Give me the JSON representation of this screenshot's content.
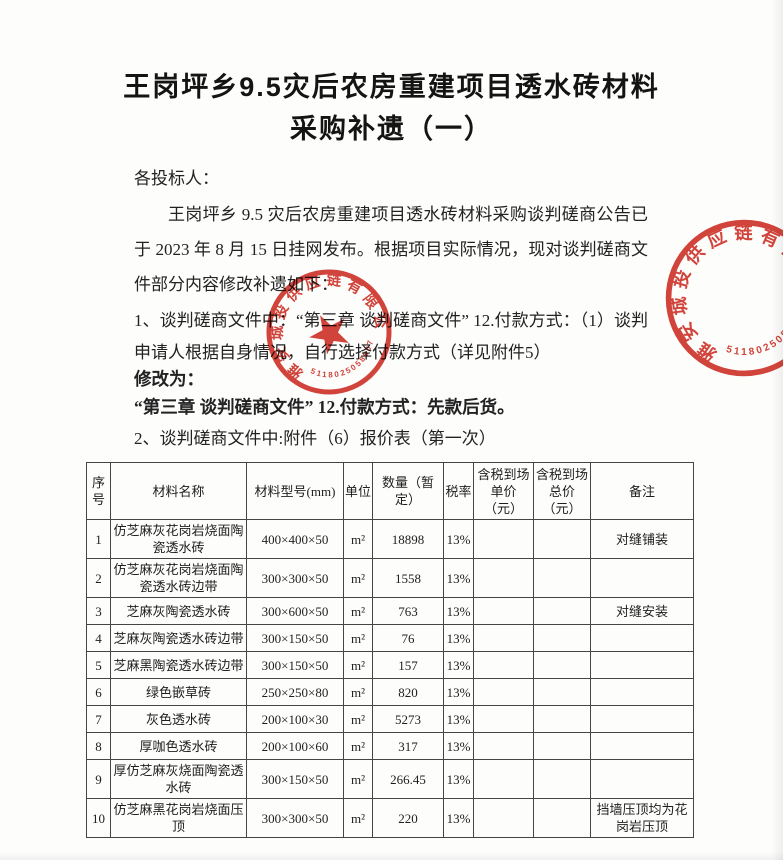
{
  "title": {
    "line1": "王岗坪乡9.5灾后农房重建项目透水砖材料",
    "line2": "采购补遗（一）"
  },
  "body": {
    "salutation": "各投标人：",
    "intro": "王岗坪乡 9.5 灾后农房重建项目透水砖材料采购谈判磋商公告已于 2023 年 8 月 15 日挂网发布。根据项目实际情况，现对谈判磋商文件部分内容修改补遗如下：",
    "clause1": "1、谈判磋商文件中：“第三章 谈判磋商文件” 12.付款方式：（1）谈判申请人根据自身情况，自行选择付款方式（详见附件5）",
    "modify_label": "修改为：",
    "modified_clause": "“第三章 谈判磋商文件”  12.付款方式：先款后货。",
    "clause2": "2、谈判磋商文件中:附件（6）报价表（第一次）"
  },
  "table": {
    "headers": [
      "序号",
      "材料名称",
      "材料型号(mm)",
      "单位",
      "数量（暂定）",
      "税率",
      "含税到场单价（元）",
      "含税到场总价（元）",
      "备注"
    ],
    "column_keys": [
      "no",
      "name",
      "model",
      "unit",
      "qty",
      "tax",
      "unit_price",
      "total_price",
      "note"
    ],
    "rows": [
      {
        "no": "1",
        "name": "仿芝麻灰花岗岩烧面陶瓷透水砖",
        "model": "400×400×50",
        "unit": "m²",
        "qty": "18898",
        "tax": "13%",
        "unit_price": "",
        "total_price": "",
        "note": "对缝铺装"
      },
      {
        "no": "2",
        "name": "仿芝麻灰花岗岩烧面陶瓷透水砖边带",
        "model": "300×300×50",
        "unit": "m²",
        "qty": "1558",
        "tax": "13%",
        "unit_price": "",
        "total_price": "",
        "note": ""
      },
      {
        "no": "3",
        "name": "芝麻灰陶瓷透水砖",
        "model": "300×600×50",
        "unit": "m²",
        "qty": "763",
        "tax": "13%",
        "unit_price": "",
        "total_price": "",
        "note": "对缝安装"
      },
      {
        "no": "4",
        "name": "芝麻灰陶瓷透水砖边带",
        "model": "300×150×50",
        "unit": "m²",
        "qty": "76",
        "tax": "13%",
        "unit_price": "",
        "total_price": "",
        "note": ""
      },
      {
        "no": "5",
        "name": "芝麻黑陶瓷透水砖边带",
        "model": "300×150×50",
        "unit": "m²",
        "qty": "157",
        "tax": "13%",
        "unit_price": "",
        "total_price": "",
        "note": ""
      },
      {
        "no": "6",
        "name": "绿色嵌草砖",
        "model": "250×250×80",
        "unit": "m²",
        "qty": "820",
        "tax": "13%",
        "unit_price": "",
        "total_price": "",
        "note": ""
      },
      {
        "no": "7",
        "name": "灰色透水砖",
        "model": "200×100×30",
        "unit": "m²",
        "qty": "5273",
        "tax": "13%",
        "unit_price": "",
        "total_price": "",
        "note": ""
      },
      {
        "no": "8",
        "name": "厚咖色透水砖",
        "model": "200×100×60",
        "unit": "m²",
        "qty": "317",
        "tax": "13%",
        "unit_price": "",
        "total_price": "",
        "note": ""
      },
      {
        "no": "9",
        "name": "厚仿芝麻灰烧面陶瓷透水砖",
        "model": "300×150×50",
        "unit": "m²",
        "qty": "266.45",
        "tax": "13%",
        "unit_price": "",
        "total_price": "",
        "note": ""
      },
      {
        "no": "10",
        "name": "仿芝麻黑花岗岩烧面压顶",
        "model": "300×300×50",
        "unit": "m²",
        "qty": "220",
        "tax": "13%",
        "unit_price": "",
        "total_price": "",
        "note": "挡墙压顶均为花岗岩压顶"
      }
    ]
  },
  "stamps": {
    "company_seal": {
      "company": "雅安城投供应链有限公司",
      "code": "5118025058907"
    },
    "partial_seal": {
      "company": "雅安城投供应链有限公司",
      "code": "5118025058907"
    }
  },
  "colors": {
    "seal_red": "#cb2318",
    "text": "#1e1e1d",
    "table_border": "#454544"
  }
}
